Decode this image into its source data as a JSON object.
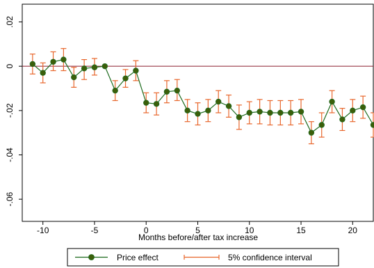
{
  "chart_data": {
    "type": "line",
    "title": "",
    "xlabel": "Months before/after tax increase",
    "ylabel": "",
    "xlim": [
      -12,
      22
    ],
    "ylim": [
      -0.07,
      0.028
    ],
    "grid": false,
    "x_ticks": [
      -10,
      -5,
      0,
      5,
      10,
      15,
      20
    ],
    "x_tick_labels": [
      "-10",
      "-5",
      "0",
      "5",
      "10",
      "15",
      "20"
    ],
    "y_ticks": [
      0.02,
      0,
      -0.02,
      -0.04,
      -0.06
    ],
    "y_tick_labels": [
      ".02",
      "0",
      "-.02",
      "-.04",
      "-.06"
    ],
    "reference_line": {
      "y": 0,
      "color": "#8b1a2b"
    },
    "x": [
      -11,
      -10,
      -9,
      -8,
      -7,
      -6,
      -5,
      -4,
      -3,
      -2,
      -1,
      0,
      1,
      2,
      3,
      4,
      5,
      6,
      7,
      8,
      9,
      10,
      11,
      12,
      13,
      14,
      15,
      16,
      17,
      18,
      19,
      20,
      21,
      22
    ],
    "series": [
      {
        "name": "Price effect",
        "color": "#1e6b1e",
        "marker_color": "#3b5e0a",
        "values": [
          0.001,
          -0.003,
          0.002,
          0.003,
          -0.005,
          -0.001,
          -0.0005,
          0.0,
          -0.011,
          -0.0055,
          -0.002,
          -0.0165,
          -0.017,
          -0.0115,
          -0.011,
          -0.02,
          -0.0215,
          -0.02,
          -0.016,
          -0.018,
          -0.023,
          -0.021,
          -0.0205,
          -0.021,
          -0.021,
          -0.021,
          -0.0205,
          -0.03,
          -0.0265,
          -0.016,
          -0.024,
          -0.02,
          -0.0185,
          -0.0265
        ]
      }
    ],
    "ci": {
      "name": "5% confidence interval",
      "color": "#e8662b",
      "lower": [
        -0.0035,
        -0.0075,
        -0.002,
        -0.002,
        -0.0095,
        -0.006,
        -0.004,
        0.0,
        -0.0155,
        -0.0095,
        -0.0065,
        -0.021,
        -0.022,
        -0.0165,
        -0.0155,
        -0.025,
        -0.0265,
        -0.025,
        -0.021,
        -0.023,
        -0.0285,
        -0.026,
        -0.026,
        -0.0265,
        -0.0265,
        -0.0265,
        -0.026,
        -0.035,
        -0.032,
        -0.021,
        -0.029,
        -0.025,
        -0.0235,
        -0.032
      ],
      "upper": [
        0.0055,
        0.0015,
        0.0065,
        0.008,
        -0.0005,
        0.003,
        0.0035,
        0.0,
        -0.0065,
        -0.0015,
        0.0025,
        -0.012,
        -0.012,
        -0.0065,
        -0.006,
        -0.015,
        -0.0165,
        -0.015,
        -0.011,
        -0.013,
        -0.0175,
        -0.016,
        -0.015,
        -0.0155,
        -0.0155,
        -0.0155,
        -0.015,
        -0.025,
        -0.021,
        -0.011,
        -0.019,
        -0.015,
        -0.0135,
        -0.021
      ]
    },
    "legend": {
      "placement": "bottom",
      "items": [
        "Price effect",
        "5% confidence interval"
      ]
    }
  }
}
